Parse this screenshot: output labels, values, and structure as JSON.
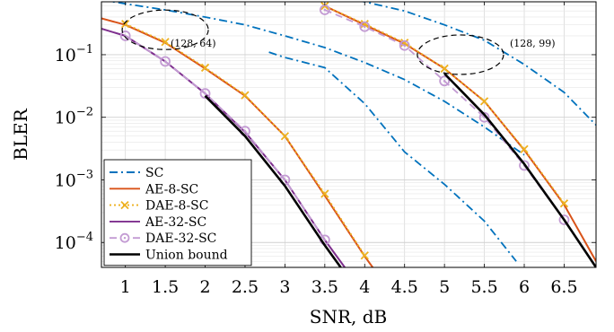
{
  "chart_data": {
    "type": "line",
    "xlabel": "SNR, dB",
    "ylabel": "BLER",
    "xlim": [
      0.7,
      6.9
    ],
    "ylim": [
      4e-05,
      0.7
    ],
    "yscale": "log",
    "xticks": [
      1,
      1.5,
      2,
      2.5,
      3,
      3.5,
      4,
      4.5,
      5,
      5.5,
      6,
      6.5
    ],
    "xtick_labels": [
      "1",
      "1.5",
      "2",
      "2.5",
      "3",
      "3.5",
      "4",
      "4.5",
      "5",
      "5.5",
      "6",
      "6.5"
    ],
    "yticks": [
      0.0001,
      0.001,
      0.01,
      0.1
    ],
    "grid": true,
    "legend_position": "bottom-left",
    "annotations": [
      {
        "text": "(128, 64)",
        "target_x": 1.5,
        "target_y": 0.25
      },
      {
        "text": "(128, 99)",
        "target_x": 5.2,
        "target_y": 0.1
      }
    ],
    "series": [
      {
        "name": "SC",
        "color": "#0072bd",
        "style": "dashdot",
        "marker": "none",
        "x": [
          0.7,
          1.0,
          1.5,
          2.0,
          2.5,
          3.0,
          3.5,
          4.0,
          4.5,
          5.0,
          5.5,
          6.0
        ],
        "y": [
          0.75,
          0.65,
          0.52,
          0.4,
          0.3,
          0.2,
          0.13,
          0.075,
          0.04,
          0.018,
          0.007,
          0.0025
        ]
      },
      {
        "name": "SC",
        "color": "#0072bd",
        "style": "dashdot",
        "marker": "none",
        "x": [
          3.7,
          4.0,
          4.5,
          5.0,
          5.5,
          6.0,
          6.5,
          6.9
        ],
        "y": [
          0.8,
          0.7,
          0.5,
          0.3,
          0.17,
          0.07,
          0.025,
          0.0075
        ]
      },
      {
        "name": "SC",
        "color": "#0072bd",
        "style": "dashdot",
        "marker": "none",
        "x": [
          2.8,
          3.0,
          3.2,
          3.5,
          4.0,
          4.5,
          5.0,
          5.5,
          5.9
        ],
        "y": [
          0.11,
          0.09,
          0.078,
          0.062,
          0.0165,
          0.0028,
          0.00085,
          0.00022,
          5e-05
        ]
      },
      {
        "name": "AE-8-SC",
        "color": "#d95319",
        "style": "solid",
        "marker": "none",
        "x": [
          0.7,
          1.0,
          1.5,
          2.0,
          2.5,
          3.0,
          3.5,
          4.0,
          4.1
        ],
        "y": [
          0.38,
          0.3,
          0.155,
          0.06,
          0.022,
          0.005,
          0.00056,
          6e-05,
          4e-05
        ]
      },
      {
        "name": "AE-8-SC",
        "color": "#d95319",
        "style": "solid",
        "marker": "none",
        "x": [
          3.5,
          4.0,
          4.5,
          5.0,
          5.5,
          6.0,
          6.5,
          6.9
        ],
        "y": [
          0.6,
          0.3,
          0.15,
          0.06,
          0.018,
          0.003,
          0.0004,
          5e-05
        ]
      },
      {
        "name": "DAE-8-SC",
        "color": "#edb120",
        "style": "dotted",
        "marker": "x",
        "x": [
          1.0,
          1.5,
          2.0,
          2.5,
          3.0,
          3.5,
          4.0
        ],
        "y": [
          0.31,
          0.16,
          0.062,
          0.0225,
          0.005,
          0.0006,
          6.2e-05
        ]
      },
      {
        "name": "DAE-8-SC",
        "color": "#edb120",
        "style": "dotted",
        "marker": "x",
        "x": [
          3.5,
          4.0,
          4.5,
          5.0,
          5.5,
          6.0,
          6.5
        ],
        "y": [
          0.6,
          0.31,
          0.155,
          0.06,
          0.018,
          0.0031,
          0.00042
        ]
      },
      {
        "name": "AE-32-SC",
        "color": "#7e2f8e",
        "style": "solid",
        "marker": "none",
        "x": [
          0.7,
          1.0,
          1.5,
          2.0,
          2.5,
          3.0,
          3.5,
          3.75
        ],
        "y": [
          0.26,
          0.2,
          0.078,
          0.024,
          0.0058,
          0.001,
          0.00011,
          4e-05
        ]
      },
      {
        "name": "DAE-32-SC",
        "color": "#c39bd3",
        "style": "dashed",
        "marker": "o",
        "x": [
          1.0,
          1.5,
          2.0,
          2.5,
          3.0,
          3.5
        ],
        "y": [
          0.2,
          0.078,
          0.024,
          0.006,
          0.001,
          0.00011
        ]
      },
      {
        "name": "DAE-32-SC",
        "color": "#c39bd3",
        "style": "dashed",
        "marker": "o",
        "x": [
          3.5,
          4.0,
          4.5,
          5.0,
          5.5,
          6.0,
          6.5
        ],
        "y": [
          0.52,
          0.28,
          0.14,
          0.038,
          0.01,
          0.0017,
          0.00023
        ]
      },
      {
        "name": "Union bound",
        "color": "#000000",
        "style": "solid",
        "marker": "none",
        "x": [
          2.0,
          2.5,
          3.0,
          3.5,
          3.7
        ],
        "y": [
          0.022,
          0.005,
          0.0008,
          9e-05,
          4e-05
        ]
      },
      {
        "name": "Union bound",
        "color": "#000000",
        "style": "solid",
        "marker": "none",
        "x": [
          5.0,
          5.5,
          6.0,
          6.5,
          6.9
        ],
        "y": [
          0.05,
          0.011,
          0.0018,
          0.00023,
          4e-05
        ]
      }
    ],
    "legend": [
      {
        "label": "SC",
        "color": "#0072bd",
        "style": "dashdot",
        "marker": "none"
      },
      {
        "label": "AE-8-SC",
        "color": "#d95319",
        "style": "solid",
        "marker": "none"
      },
      {
        "label": "DAE-8-SC",
        "color": "#edb120",
        "style": "dotted",
        "marker": "x"
      },
      {
        "label": "AE-32-SC",
        "color": "#7e2f8e",
        "style": "solid",
        "marker": "none"
      },
      {
        "label": "DAE-32-SC",
        "color": "#c39bd3",
        "style": "dashed",
        "marker": "o"
      },
      {
        "label": "Union bound",
        "color": "#000000",
        "style": "solid",
        "marker": "none"
      }
    ]
  }
}
